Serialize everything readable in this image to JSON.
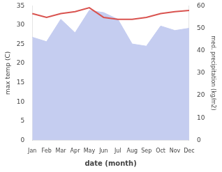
{
  "chart_data": {
    "type": "line",
    "xlabel": "date (month)",
    "ylabel": "max temp (C)",
    "y2label": "med. precipitation (kg/m2)",
    "categories": [
      "Jan",
      "Feb",
      "Mar",
      "Apr",
      "May",
      "Jun",
      "Jul",
      "Aug",
      "Sep",
      "Oct",
      "Nov",
      "Dec"
    ],
    "series": [
      {
        "type": "area",
        "axis": "y2",
        "color": "#c5cdf0",
        "values": [
          46,
          44,
          54,
          48,
          58,
          57,
          54,
          43,
          42,
          51,
          49,
          50
        ]
      },
      {
        "type": "line",
        "color": "#d9534f",
        "values": [
          33.0,
          32.0,
          33.0,
          33.5,
          34.5,
          32.0,
          31.5,
          31.5,
          32.0,
          33.0,
          33.5,
          33.8
        ]
      }
    ],
    "ylim": [
      0,
      35
    ],
    "yticks": [
      0,
      5,
      10,
      15,
      20,
      25,
      30,
      35
    ],
    "y2lim": [
      0,
      60
    ],
    "y2ticks": [
      0,
      10,
      20,
      30,
      40,
      50,
      60
    ],
    "grid": false
  }
}
